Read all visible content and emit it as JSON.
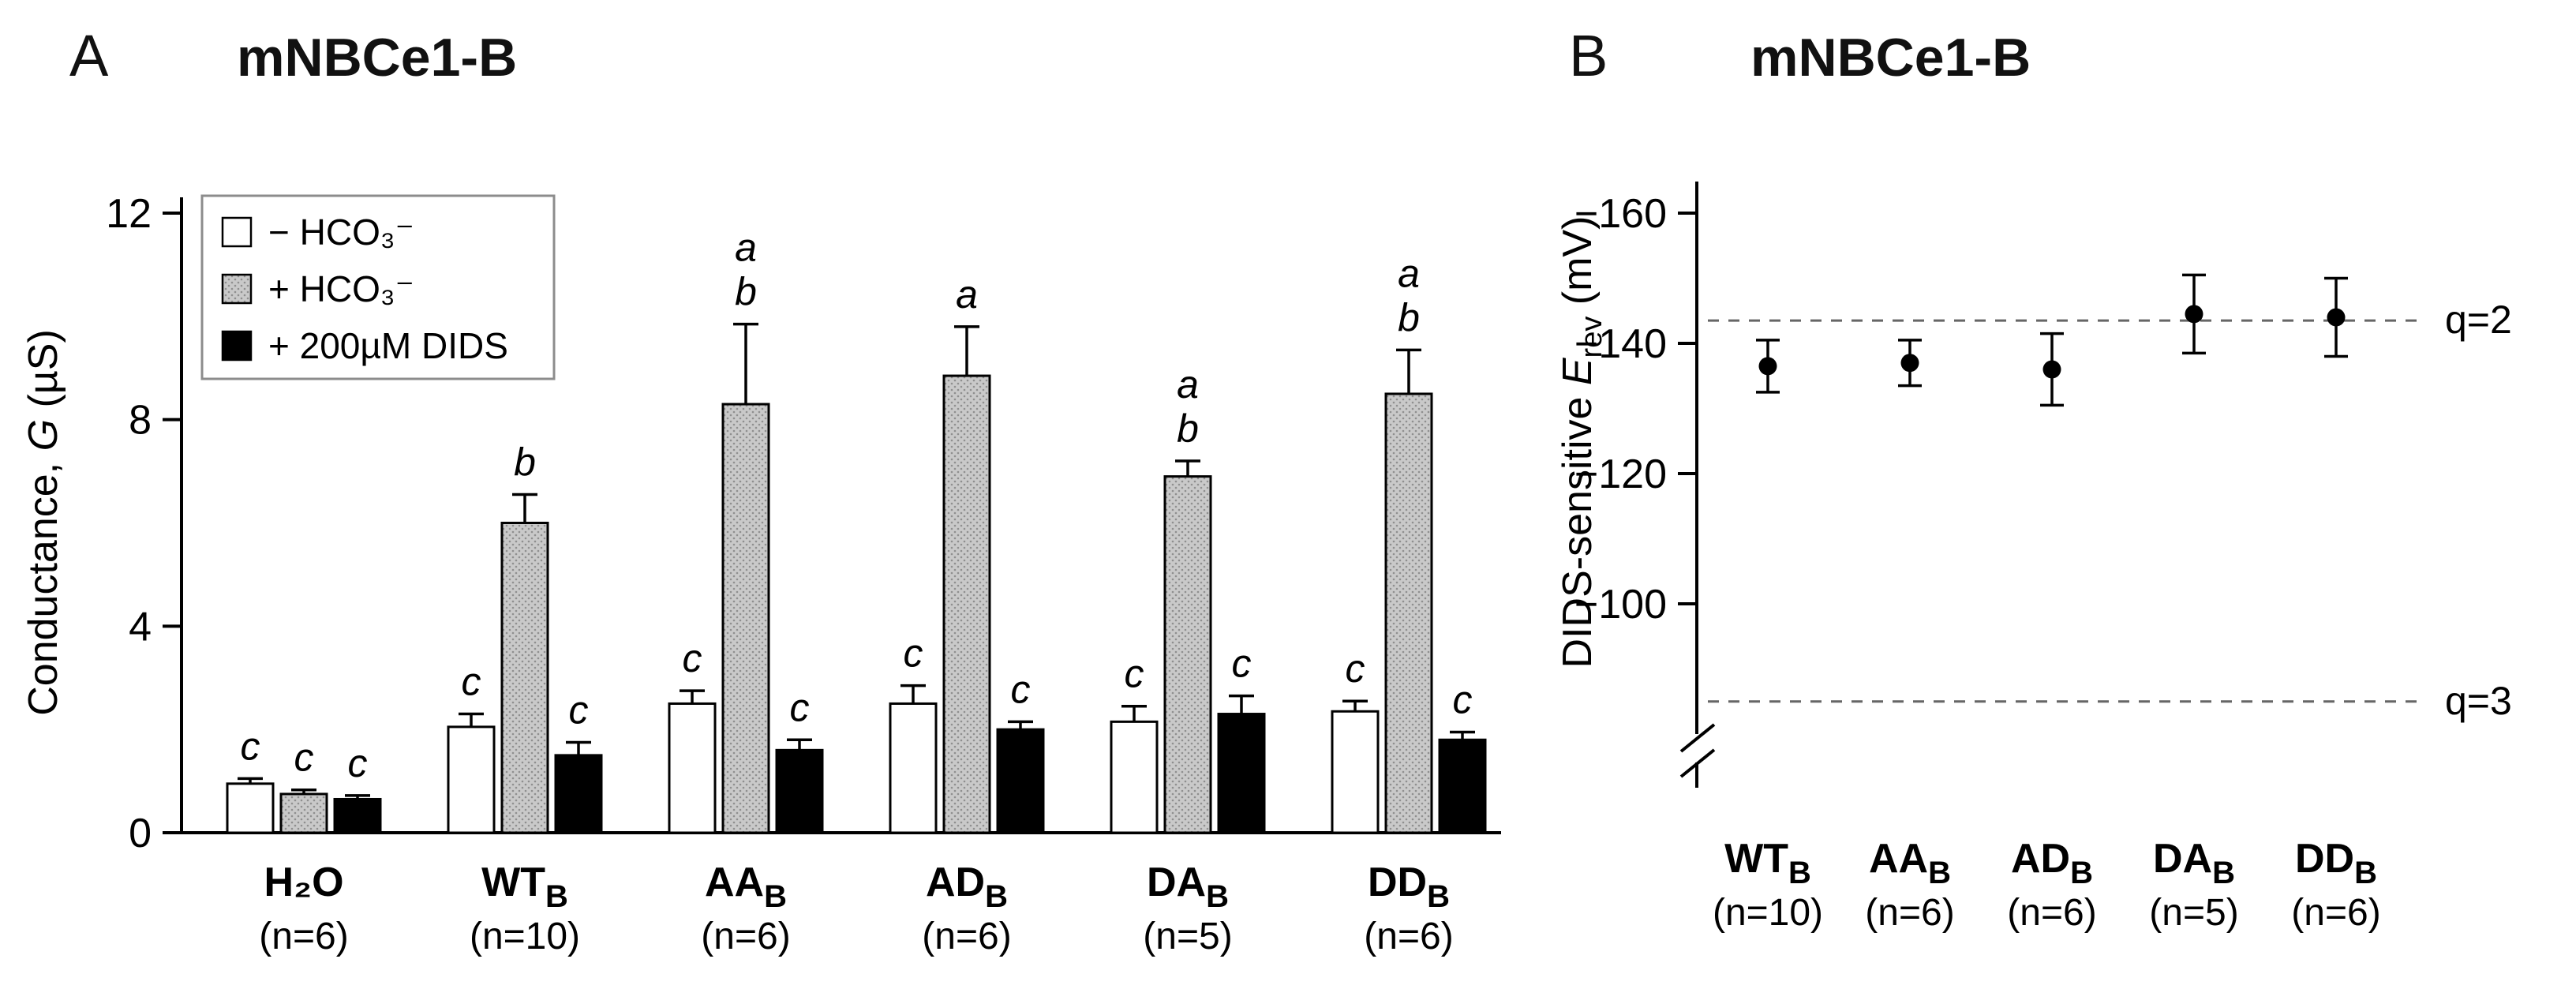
{
  "figure": {
    "background": "#ffffff"
  },
  "panel_a": {
    "letter": "A",
    "title": "mNBCe1-B"
  },
  "panel_b": {
    "letter": "B",
    "title": "mNBCe1-B"
  },
  "chart_data": [
    {
      "id": "panel-A",
      "type": "bar",
      "title": "mNBCe1-B",
      "ylabel": "Conductance, G (µS)",
      "ylabel_parts": [
        {
          "t": "Conductance, "
        },
        {
          "t": "G",
          "italic": true
        },
        {
          "t": " (µS)"
        }
      ],
      "ylim": [
        0,
        12
      ],
      "yticks": [
        0,
        4,
        8,
        12
      ],
      "grid": false,
      "legend_position": "top-left",
      "legend": [
        {
          "label": "− HCO₃⁻",
          "fill": "white"
        },
        {
          "label": "+ HCO₃⁻",
          "fill": "stipple"
        },
        {
          "label": "+ 200µM DIDS",
          "fill": "black"
        }
      ],
      "categories": [
        {
          "label": "H₂O",
          "sub": "",
          "n": "(n=6)"
        },
        {
          "label": "WT",
          "sub": "B",
          "n": "(n=10)"
        },
        {
          "label": "AA",
          "sub": "B",
          "n": "(n=6)"
        },
        {
          "label": "AD",
          "sub": "B",
          "n": "(n=6)"
        },
        {
          "label": "DA",
          "sub": "B",
          "n": "(n=5)"
        },
        {
          "label": "DD",
          "sub": "B",
          "n": "(n=6)"
        }
      ],
      "series": [
        {
          "name": "− HCO₃⁻",
          "fill": "white",
          "values": [
            0.95,
            2.05,
            2.5,
            2.5,
            2.15,
            2.35
          ],
          "errors": [
            0.1,
            0.25,
            0.25,
            0.35,
            0.3,
            0.2
          ],
          "letters": [
            [
              "c"
            ],
            [
              "c"
            ],
            [
              "c"
            ],
            [
              "c"
            ],
            [
              "c"
            ],
            [
              "c"
            ]
          ]
        },
        {
          "name": "+ HCO₃⁻",
          "fill": "stipple",
          "values": [
            0.75,
            6.0,
            8.3,
            8.85,
            6.9,
            8.5
          ],
          "errors": [
            0.08,
            0.55,
            1.55,
            0.95,
            0.3,
            0.85
          ],
          "letters": [
            [
              "c"
            ],
            [
              "b"
            ],
            [
              "a",
              "b"
            ],
            [
              "a"
            ],
            [
              "a",
              "b"
            ],
            [
              "a",
              "b"
            ]
          ]
        },
        {
          "name": "+ 200µM DIDS",
          "fill": "black",
          "values": [
            0.65,
            1.5,
            1.6,
            2.0,
            2.3,
            1.8
          ],
          "errors": [
            0.07,
            0.25,
            0.2,
            0.15,
            0.35,
            0.15
          ],
          "letters": [
            [
              "c"
            ],
            [
              "c"
            ],
            [
              "c"
            ],
            [
              "c"
            ],
            [
              "c"
            ],
            [
              "c"
            ]
          ]
        }
      ],
      "colors": {
        "bar_stroke": "#000000",
        "stipple_base": "#c9c9c9",
        "stipple_dot": "#8f8f8f"
      }
    },
    {
      "id": "panel-B",
      "type": "scatter",
      "title": "mNBCe1-B",
      "ylabel": "DIDS-sensitive Erev (mV)",
      "ylabel_parts": [
        {
          "t": "DIDS-sensitive "
        },
        {
          "t": "E",
          "italic": true
        },
        {
          "t": "rev",
          "sub": true
        },
        {
          "t": " (mV)"
        }
      ],
      "y_axis_inverted": true,
      "yticks": [
        -160,
        -140,
        -120,
        -100
      ],
      "ytick_labels": [
        "−160",
        "−140",
        "−120",
        "−100"
      ],
      "axis_break": true,
      "categories": [
        {
          "label": "WT",
          "sub": "B",
          "n": "(n=10)"
        },
        {
          "label": "AA",
          "sub": "B",
          "n": "(n=6)"
        },
        {
          "label": "AD",
          "sub": "B",
          "n": "(n=6)"
        },
        {
          "label": "DA",
          "sub": "B",
          "n": "(n=5)"
        },
        {
          "label": "DD",
          "sub": "B",
          "n": "(n=6)"
        }
      ],
      "values_mv": [
        -136.5,
        -137,
        -136,
        -144.5,
        -144
      ],
      "errors_mv": [
        4,
        3.5,
        5.5,
        6,
        6
      ],
      "annotations": [
        {
          "label": "q=2",
          "position_mv": -143.5
        },
        {
          "label": "q=3",
          "position_mv": -85
        }
      ],
      "marker": {
        "shape": "circle",
        "color": "#000000"
      }
    }
  ]
}
